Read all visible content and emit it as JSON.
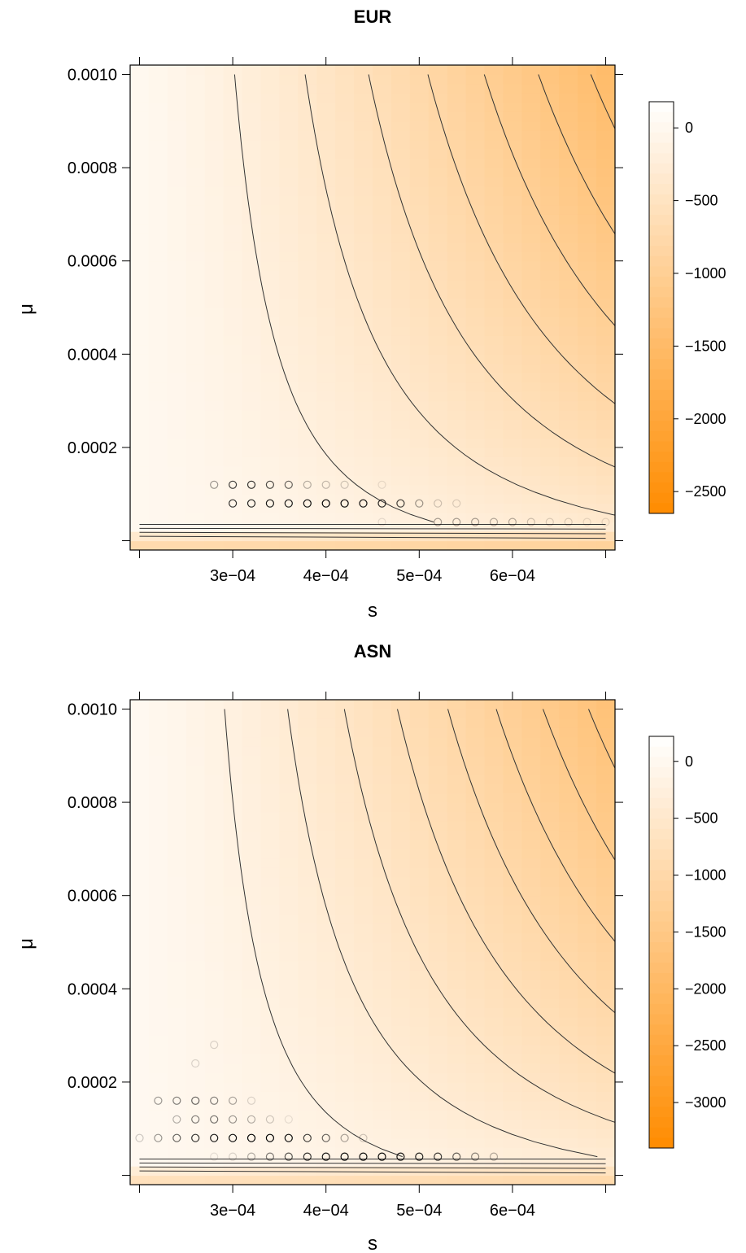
{
  "chart_data": [
    {
      "type": "heatmap",
      "title": "EUR",
      "xlabel": "s",
      "ylabel": "μ",
      "xlim": [
        0.0002,
        0.0007
      ],
      "ylim": [
        0.0,
        0.001
      ],
      "xticks": [
        0.0003,
        0.0004,
        0.0005,
        0.0006
      ],
      "xtick_labels": [
        "3e−04",
        "4e−04",
        "5e−04",
        "6e−04"
      ],
      "yticks": [
        0.0002,
        0.0004,
        0.0006,
        0.0008,
        0.001
      ],
      "ytick_labels": [
        "0.0002",
        "0.0004",
        "0.0006",
        "0.0008",
        "0.0010"
      ],
      "colorbar": {
        "range": [
          -2650,
          180
        ],
        "ticks": [
          0,
          -500,
          -1000,
          -1500,
          -2000,
          -2500
        ],
        "tick_labels": [
          "0",
          "−500",
          "−1000",
          "−1500",
          "−2000",
          "−2500"
        ]
      },
      "colors": {
        "low": "#ff8c00",
        "high": "#ffffff"
      },
      "grid": false,
      "points": [
        {
          "x": 0.0003,
          "y": 8e-05,
          "alpha": 0.8
        },
        {
          "x": 0.00032,
          "y": 8e-05,
          "alpha": 0.85
        },
        {
          "x": 0.00034,
          "y": 8e-05,
          "alpha": 0.9
        },
        {
          "x": 0.00036,
          "y": 8e-05,
          "alpha": 0.9
        },
        {
          "x": 0.00038,
          "y": 8e-05,
          "alpha": 0.95
        },
        {
          "x": 0.0004,
          "y": 8e-05,
          "alpha": 1.0
        },
        {
          "x": 0.00042,
          "y": 8e-05,
          "alpha": 1.0
        },
        {
          "x": 0.00044,
          "y": 8e-05,
          "alpha": 0.95
        },
        {
          "x": 0.00046,
          "y": 8e-05,
          "alpha": 0.85
        },
        {
          "x": 0.00048,
          "y": 8e-05,
          "alpha": 0.75
        },
        {
          "x": 0.0005,
          "y": 8e-05,
          "alpha": 0.4
        },
        {
          "x": 0.00052,
          "y": 8e-05,
          "alpha": 0.2
        },
        {
          "x": 0.00054,
          "y": 8e-05,
          "alpha": 0.15
        },
        {
          "x": 0.00028,
          "y": 0.00012,
          "alpha": 0.4
        },
        {
          "x": 0.0003,
          "y": 0.00012,
          "alpha": 0.75
        },
        {
          "x": 0.00032,
          "y": 0.00012,
          "alpha": 0.8
        },
        {
          "x": 0.00034,
          "y": 0.00012,
          "alpha": 0.7
        },
        {
          "x": 0.00036,
          "y": 0.00012,
          "alpha": 0.6
        },
        {
          "x": 0.00038,
          "y": 0.00012,
          "alpha": 0.3
        },
        {
          "x": 0.0004,
          "y": 0.00012,
          "alpha": 0.25
        },
        {
          "x": 0.00042,
          "y": 0.00012,
          "alpha": 0.2
        },
        {
          "x": 0.00046,
          "y": 0.00012,
          "alpha": 0.1
        },
        {
          "x": 0.00046,
          "y": 4e-05,
          "alpha": 0.1
        },
        {
          "x": 0.00052,
          "y": 4e-05,
          "alpha": 0.35
        },
        {
          "x": 0.00054,
          "y": 4e-05,
          "alpha": 0.35
        },
        {
          "x": 0.00056,
          "y": 4e-05,
          "alpha": 0.35
        },
        {
          "x": 0.00058,
          "y": 4e-05,
          "alpha": 0.3
        },
        {
          "x": 0.0006,
          "y": 4e-05,
          "alpha": 0.3
        },
        {
          "x": 0.00062,
          "y": 4e-05,
          "alpha": 0.2
        },
        {
          "x": 0.00064,
          "y": 4e-05,
          "alpha": 0.15
        },
        {
          "x": 0.00066,
          "y": 4e-05,
          "alpha": 0.15
        },
        {
          "x": 0.00068,
          "y": 4e-05,
          "alpha": 0.1
        },
        {
          "x": 0.0007,
          "y": 4e-05,
          "alpha": 0.1
        }
      ]
    },
    {
      "type": "heatmap",
      "title": "ASN",
      "xlabel": "s",
      "ylabel": "μ",
      "xlim": [
        0.0002,
        0.0007
      ],
      "ylim": [
        0.0,
        0.001
      ],
      "xticks": [
        0.0003,
        0.0004,
        0.0005,
        0.0006
      ],
      "xtick_labels": [
        "3e−04",
        "4e−04",
        "5e−04",
        "6e−04"
      ],
      "yticks": [
        0.0002,
        0.0004,
        0.0006,
        0.0008,
        0.001
      ],
      "ytick_labels": [
        "0.0002",
        "0.0004",
        "0.0006",
        "0.0008",
        "0.0010"
      ],
      "colorbar": {
        "range": [
          -3400,
          220
        ],
        "ticks": [
          0,
          -500,
          -1000,
          -1500,
          -2000,
          -2500,
          -3000
        ],
        "tick_labels": [
          "0",
          "−500",
          "−1000",
          "−1500",
          "−2000",
          "−2500",
          "−3000"
        ]
      },
      "colors": {
        "low": "#ff8c00",
        "high": "#ffffff"
      },
      "grid": false,
      "points": [
        {
          "x": 0.0002,
          "y": 8e-05,
          "alpha": 0.2
        },
        {
          "x": 0.00022,
          "y": 8e-05,
          "alpha": 0.4
        },
        {
          "x": 0.00024,
          "y": 8e-05,
          "alpha": 0.6
        },
        {
          "x": 0.00026,
          "y": 8e-05,
          "alpha": 0.8
        },
        {
          "x": 0.00028,
          "y": 8e-05,
          "alpha": 0.9
        },
        {
          "x": 0.0003,
          "y": 8e-05,
          "alpha": 0.95
        },
        {
          "x": 0.00032,
          "y": 8e-05,
          "alpha": 1.0
        },
        {
          "x": 0.00034,
          "y": 8e-05,
          "alpha": 1.0
        },
        {
          "x": 0.00036,
          "y": 8e-05,
          "alpha": 0.95
        },
        {
          "x": 0.00038,
          "y": 8e-05,
          "alpha": 0.75
        },
        {
          "x": 0.0004,
          "y": 8e-05,
          "alpha": 0.6
        },
        {
          "x": 0.00042,
          "y": 8e-05,
          "alpha": 0.35
        },
        {
          "x": 0.00044,
          "y": 8e-05,
          "alpha": 0.2
        },
        {
          "x": 0.00024,
          "y": 0.00012,
          "alpha": 0.3
        },
        {
          "x": 0.00026,
          "y": 0.00012,
          "alpha": 0.5
        },
        {
          "x": 0.00028,
          "y": 0.00012,
          "alpha": 0.55
        },
        {
          "x": 0.0003,
          "y": 0.00012,
          "alpha": 0.4
        },
        {
          "x": 0.00032,
          "y": 0.00012,
          "alpha": 0.3
        },
        {
          "x": 0.00034,
          "y": 0.00012,
          "alpha": 0.2
        },
        {
          "x": 0.00036,
          "y": 0.00012,
          "alpha": 0.1
        },
        {
          "x": 0.00022,
          "y": 0.00016,
          "alpha": 0.4
        },
        {
          "x": 0.00024,
          "y": 0.00016,
          "alpha": 0.5
        },
        {
          "x": 0.00026,
          "y": 0.00016,
          "alpha": 0.6
        },
        {
          "x": 0.00028,
          "y": 0.00016,
          "alpha": 0.5
        },
        {
          "x": 0.0003,
          "y": 0.00016,
          "alpha": 0.35
        },
        {
          "x": 0.00032,
          "y": 0.00016,
          "alpha": 0.15
        },
        {
          "x": 0.00026,
          "y": 0.00024,
          "alpha": 0.15
        },
        {
          "x": 0.00028,
          "y": 0.00028,
          "alpha": 0.15
        },
        {
          "x": 0.00028,
          "y": 4e-05,
          "alpha": 0.1
        },
        {
          "x": 0.0003,
          "y": 4e-05,
          "alpha": 0.15
        },
        {
          "x": 0.00032,
          "y": 4e-05,
          "alpha": 0.3
        },
        {
          "x": 0.00034,
          "y": 4e-05,
          "alpha": 0.5
        },
        {
          "x": 0.00036,
          "y": 4e-05,
          "alpha": 0.65
        },
        {
          "x": 0.00038,
          "y": 4e-05,
          "alpha": 0.8
        },
        {
          "x": 0.0004,
          "y": 4e-05,
          "alpha": 0.9
        },
        {
          "x": 0.00042,
          "y": 4e-05,
          "alpha": 0.95
        },
        {
          "x": 0.00044,
          "y": 4e-05,
          "alpha": 0.95
        },
        {
          "x": 0.00046,
          "y": 4e-05,
          "alpha": 0.95
        },
        {
          "x": 0.00048,
          "y": 4e-05,
          "alpha": 0.9
        },
        {
          "x": 0.0005,
          "y": 4e-05,
          "alpha": 0.85
        },
        {
          "x": 0.00052,
          "y": 4e-05,
          "alpha": 0.75
        },
        {
          "x": 0.00054,
          "y": 4e-05,
          "alpha": 0.6
        },
        {
          "x": 0.00056,
          "y": 4e-05,
          "alpha": 0.45
        },
        {
          "x": 0.00058,
          "y": 4e-05,
          "alpha": 0.3
        }
      ]
    }
  ]
}
